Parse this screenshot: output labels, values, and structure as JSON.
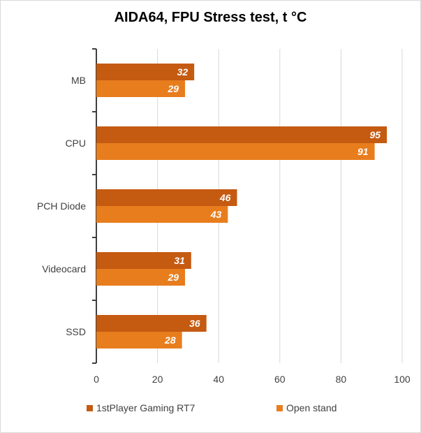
{
  "chart_data": {
    "type": "bar",
    "orientation": "horizontal",
    "title": "AIDA64, FPU Stress test, t °C",
    "categories": [
      "MB",
      "CPU",
      "PCH Diode",
      "Videocard",
      "SSD"
    ],
    "series": [
      {
        "name": "1stPlayer Gaming RT7",
        "values": [
          32,
          95,
          46,
          31,
          36
        ],
        "color": "#c55a11"
      },
      {
        "name": "Open stand",
        "values": [
          29,
          91,
          43,
          29,
          28
        ],
        "color": "#e87d1e"
      }
    ],
    "xlim": [
      0,
      100
    ],
    "xticks": [
      0,
      20,
      40,
      60,
      80,
      100
    ],
    "grid": true,
    "legend_position": "bottom"
  }
}
